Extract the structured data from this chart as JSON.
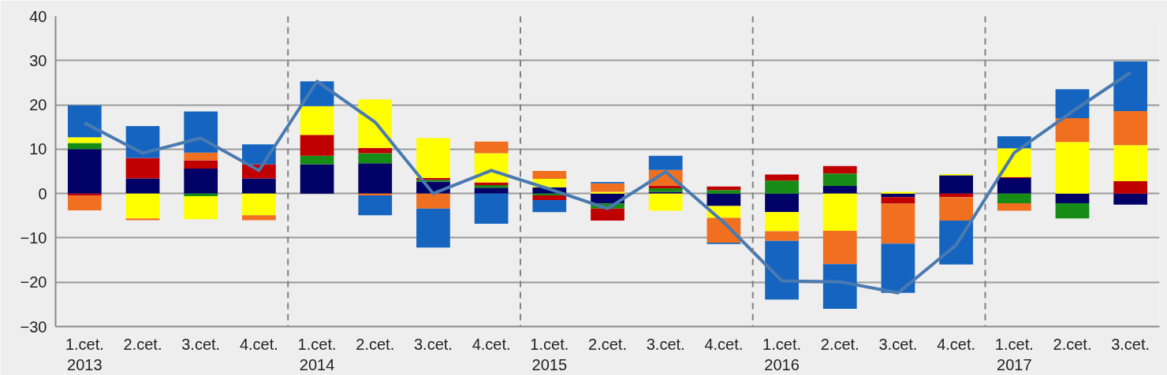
{
  "chart_data": {
    "type": "bar",
    "stacked": true,
    "categories": [
      "1.cet.\n2013",
      "2.cet.",
      "3.cet.",
      "4.cet.",
      "1.cet.\n2014",
      "2.cet.",
      "3.cet.",
      "4.cet.",
      "1.cet.\n2015",
      "2.cet.",
      "3.cet.",
      "4.cet.",
      "1.cet.\n2016",
      "2.cet.",
      "3.cet.",
      "4.cet.",
      "1.cet.\n2017",
      "2.cet.",
      "3.cet."
    ],
    "series": [
      {
        "color": "#000066",
        "values": [
          10.0,
          3.4,
          5.6,
          3.4,
          6.6,
          6.8,
          2.7,
          1.3,
          1.4,
          -2.3,
          0.4,
          -2.8,
          -4.2,
          1.7,
          -0.8,
          4.1,
          3.5,
          -2.2,
          -2.5
        ]
      },
      {
        "color": "#168c16",
        "values": [
          1.4,
          null,
          -0.6,
          null,
          1.9,
          2.3,
          0.4,
          0.6,
          -0.4,
          -1.1,
          0.8,
          0.8,
          2.9,
          2.8,
          null,
          null,
          -2.2,
          -3.4,
          null
        ]
      },
      {
        "color": "#c00000",
        "values": [
          -0.5,
          4.6,
          1.9,
          3.2,
          4.7,
          1.2,
          0.4,
          0.6,
          -1.1,
          -2.7,
          0.6,
          0.8,
          1.4,
          1.7,
          -1.5,
          -0.8,
          0.2,
          null,
          2.8
        ]
      },
      {
        "color": "#ffff00",
        "values": [
          1.3,
          -5.6,
          -5.2,
          -4.9,
          6.5,
          10.9,
          9.0,
          6.6,
          1.9,
          0.4,
          -3.9,
          -2.7,
          -4.3,
          -8.4,
          0.4,
          0.3,
          6.5,
          11.6,
          8.1
        ]
      },
      {
        "color": "#f07020",
        "values": [
          -3.3,
          -0.4,
          1.7,
          -1.1,
          null,
          -0.4,
          -3.4,
          2.6,
          1.8,
          1.9,
          3.5,
          -5.6,
          -2.2,
          -7.5,
          -9.0,
          -5.3,
          -1.7,
          5.4,
          7.7
        ]
      },
      {
        "color": "#1565c0",
        "values": [
          7.2,
          7.2,
          9.3,
          4.5,
          5.6,
          -4.5,
          -8.8,
          -6.8,
          -2.7,
          0.3,
          3.2,
          -0.3,
          -13.2,
          -10.1,
          -11.1,
          -9.9,
          2.7,
          6.5,
          11.2
        ]
      },
      {
        "type": "line",
        "color": "#4a7ab0",
        "values": [
          15.9,
          9.1,
          12.5,
          5.2,
          25.3,
          16.1,
          0.0,
          5.2,
          1.0,
          -3.4,
          4.9,
          -6.5,
          -19.7,
          -19.9,
          -22.4,
          -11.6,
          9.2,
          18.5,
          27.3
        ]
      }
    ],
    "ylim": [
      -30,
      40
    ],
    "yticks": [
      -30,
      -20,
      -10,
      0,
      10,
      20,
      30,
      40
    ],
    "grid": "y"
  }
}
